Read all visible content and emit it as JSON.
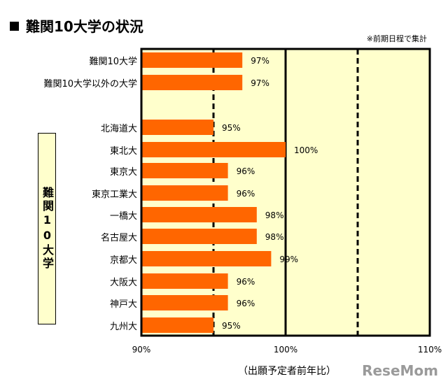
{
  "header": {
    "title": "難関10大学の状況",
    "note": "※前期日程で集計"
  },
  "group_label": "難関10大学",
  "brand": "ReseMom",
  "colors": {
    "bar": "#FF6600",
    "plot_bg": "#FFFFCC"
  },
  "chart_data": {
    "type": "bar",
    "orientation": "horizontal",
    "categories": [
      "難関10大学",
      "難関10大学以外の大学",
      "北海道大",
      "東北大",
      "東京大",
      "東京工業大",
      "一橋大",
      "名古屋大",
      "京都大",
      "大阪大",
      "神戸大",
      "九州大"
    ],
    "values": [
      97,
      97,
      95,
      100,
      96,
      96,
      98,
      98,
      99,
      96,
      96,
      95
    ],
    "value_labels": [
      "97%",
      "97%",
      "95%",
      "100%",
      "96%",
      "96%",
      "98%",
      "98%",
      "99%",
      "96%",
      "96%",
      "95%"
    ],
    "xlim": [
      90,
      110
    ],
    "xticks": [
      90,
      100,
      110
    ],
    "xtick_labels": [
      "90%",
      "100%",
      "110%"
    ],
    "xlabel": "（出願予定者前年比）",
    "reference_lines": [
      95,
      105
    ],
    "solid_lines": [
      100
    ]
  }
}
